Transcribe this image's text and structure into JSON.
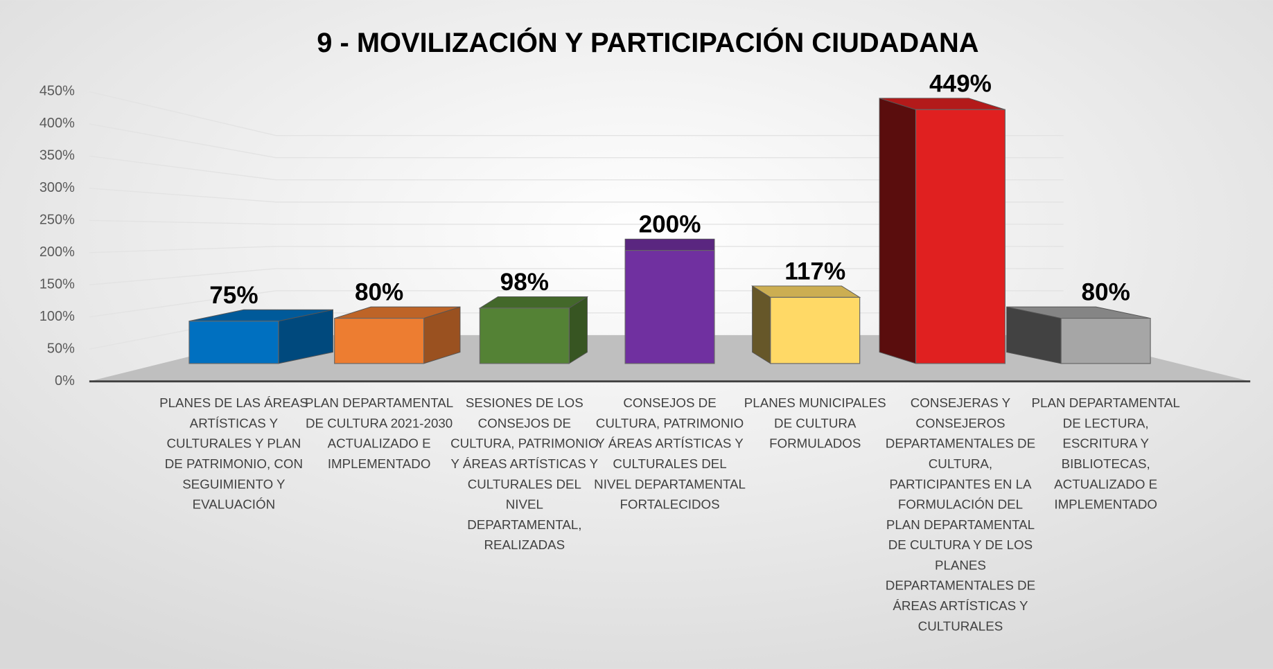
{
  "chart_data": {
    "type": "bar3d",
    "title": "9 - MOVILIZACIÓN Y PARTICIPACIÓN CIUDADANA",
    "categories": [
      "PLANES DE LAS ÁREAS ARTÍSTICAS Y CULTURALES Y PLAN DE PATRIMONIO, CON SEGUIMIENTO Y EVALUACIÓN",
      "PLAN DEPARTAMENTAL DE CULTURA 2021-2030 ACTUALIZADO E IMPLEMENTADO",
      "SESIONES DE LOS CONSEJOS DE CULTURA, PATRIMONIO Y ÁREAS ARTÍSTICAS Y CULTURALES DEL NIVEL DEPARTAMENTAL, REALIZADAS",
      "CONSEJOS DE CULTURA, PATRIMONIO Y ÁREAS ARTÍSTICAS Y CULTURALES DEL NIVEL DEPARTAMENTAL FORTALECIDOS",
      "PLANES MUNICIPALES DE CULTURA FORMULADOS",
      "CONSEJERAS Y CONSEJEROS DEPARTAMENTALES DE CULTURA, PARTICIPANTES EN LA FORMULACIÓN DEL PLAN DEPARTAMENTAL DE CULTURA Y DE LOS PLANES DEPARTAMENTALES DE ÁREAS ARTÍSTICAS Y CULTURALES",
      "PLAN DEPARTAMENTAL DE LECTURA, ESCRITURA Y BIBLIOTECAS, ACTUALIZADO E IMPLEMENTADO"
    ],
    "values": [
      75,
      80,
      98,
      200,
      117,
      449,
      80
    ],
    "value_labels": [
      "75%",
      "80%",
      "98%",
      "200%",
      "117%",
      "449%",
      "80%"
    ],
    "colors": [
      "#0070c0",
      "#ed7d31",
      "#548235",
      "#7030a0",
      "#ffd966",
      "#e02020",
      "#a6a6a6"
    ],
    "ylim": [
      0,
      450
    ],
    "yticks": [
      {
        "value": 0,
        "label": "0%"
      },
      {
        "value": 50,
        "label": "50%"
      },
      {
        "value": 100,
        "label": "100%"
      },
      {
        "value": 150,
        "label": "150%"
      },
      {
        "value": 200,
        "label": "200%"
      },
      {
        "value": 250,
        "label": "250%"
      },
      {
        "value": 300,
        "label": "300%"
      },
      {
        "value": 350,
        "label": "350%"
      },
      {
        "value": 400,
        "label": "400%"
      },
      {
        "value": 450,
        "label": "450%"
      }
    ],
    "grid": true
  }
}
